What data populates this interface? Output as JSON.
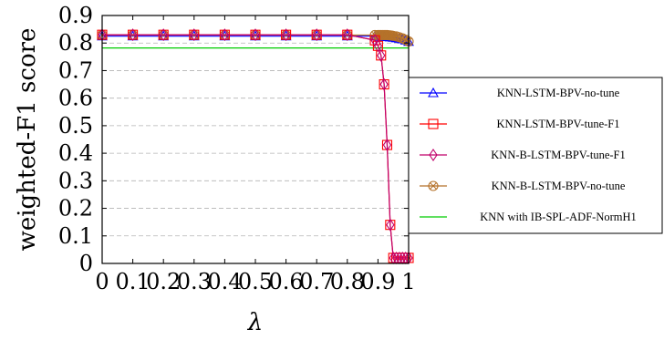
{
  "chart_data": {
    "type": "line",
    "title": "",
    "xlabel": "λ",
    "ylabel": "weighted-F1 score",
    "xlim": [
      0,
      1
    ],
    "ylim": [
      0,
      0.9
    ],
    "grid": "horizontal-dashed",
    "legend_position": "right",
    "x_ticks": [
      0,
      0.1,
      0.2,
      0.3,
      0.4,
      0.5,
      0.6,
      0.7,
      0.8,
      0.9,
      1
    ],
    "x_tick_labels": [
      "0",
      "0.1",
      "0.2",
      "0.3",
      "0.4",
      "0.5",
      "0.6",
      "0.7",
      "0.8",
      "0.9",
      "1"
    ],
    "y_ticks": [
      0,
      0.1,
      0.2,
      0.3,
      0.4,
      0.5,
      0.6,
      0.7,
      0.8,
      0.9
    ],
    "y_tick_labels": [
      "0",
      "0.1",
      "0.2",
      "0.3",
      "0.4",
      "0.5",
      "0.6",
      "0.7",
      "0.8",
      "0.9"
    ],
    "series": [
      {
        "name": "KNN-LSTM-BPV-no-tune",
        "color": "#0000ff",
        "marker": "triangle",
        "x": [
          0,
          0.1,
          0.2,
          0.3,
          0.4,
          0.5,
          0.6,
          0.7,
          0.8,
          0.89,
          0.9,
          0.91,
          0.92,
          0.93,
          0.94,
          0.95,
          0.96,
          0.97,
          0.98,
          0.99,
          1
        ],
        "y": [
          0.825,
          0.825,
          0.825,
          0.825,
          0.825,
          0.825,
          0.825,
          0.825,
          0.825,
          0.825,
          0.825,
          0.824,
          0.823,
          0.822,
          0.821,
          0.82,
          0.818,
          0.816,
          0.814,
          0.81,
          0.805
        ]
      },
      {
        "name": "KNN-LSTM-BPV-tune-F1",
        "color": "#ff0000",
        "marker": "square",
        "x": [
          0,
          0.1,
          0.2,
          0.3,
          0.4,
          0.5,
          0.6,
          0.7,
          0.8,
          0.89,
          0.9,
          0.91,
          0.92,
          0.93,
          0.94,
          0.95,
          0.96,
          0.97,
          0.98,
          0.99,
          1
        ],
        "y": [
          0.83,
          0.83,
          0.83,
          0.83,
          0.83,
          0.83,
          0.83,
          0.83,
          0.83,
          0.81,
          0.79,
          0.755,
          0.65,
          0.43,
          0.14,
          0.02,
          0.02,
          0.02,
          0.02,
          0.02,
          0.02
        ]
      },
      {
        "name": "KNN-B-LSTM-BPV-tune-F1",
        "color": "#c0006b",
        "marker": "diamond",
        "x": [
          0,
          0.1,
          0.2,
          0.3,
          0.4,
          0.5,
          0.6,
          0.7,
          0.8,
          0.89,
          0.9,
          0.91,
          0.92,
          0.93,
          0.94,
          0.95,
          0.96,
          0.97,
          0.98,
          0.99,
          1
        ],
        "y": [
          0.83,
          0.83,
          0.83,
          0.83,
          0.83,
          0.83,
          0.83,
          0.83,
          0.83,
          0.81,
          0.79,
          0.755,
          0.65,
          0.43,
          0.14,
          0.02,
          0.02,
          0.02,
          0.02,
          0.02,
          0.02
        ]
      },
      {
        "name": "KNN-B-LSTM-BPV-no-tune",
        "color": "#b5722a",
        "marker": "circle-x",
        "x": [
          0,
          0.1,
          0.2,
          0.3,
          0.4,
          0.5,
          0.6,
          0.7,
          0.8,
          0.89,
          0.9,
          0.905,
          0.91,
          0.915,
          0.92,
          0.925,
          0.93,
          0.935,
          0.94,
          0.945,
          0.95,
          0.96,
          0.97,
          0.98,
          0.99,
          1
        ],
        "y": [
          0.829,
          0.829,
          0.829,
          0.829,
          0.829,
          0.829,
          0.829,
          0.829,
          0.829,
          0.829,
          0.829,
          0.829,
          0.829,
          0.829,
          0.829,
          0.829,
          0.829,
          0.828,
          0.828,
          0.827,
          0.826,
          0.824,
          0.821,
          0.817,
          0.812,
          0.806
        ]
      },
      {
        "name": "KNN with IB-SPL-ADF-NormH1",
        "color": "#00cc00",
        "marker": "none",
        "x": [
          0,
          1
        ],
        "y": [
          0.782,
          0.782
        ]
      }
    ]
  }
}
